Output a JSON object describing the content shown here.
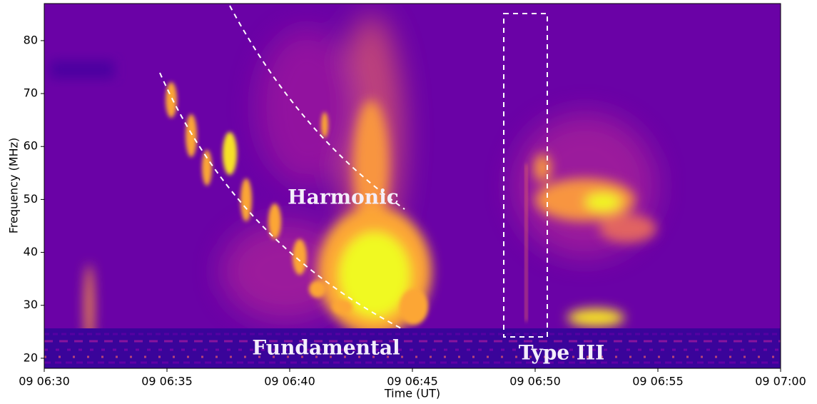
{
  "chart_data": {
    "type": "spectrogram",
    "xlabel": "Time (UT)",
    "ylabel": "Frequency (MHz)",
    "xlim": [
      390,
      420
    ],
    "xticks": [
      {
        "value": 390,
        "label": "09 06:30"
      },
      {
        "value": 395,
        "label": "09 06:35"
      },
      {
        "value": 400,
        "label": "09 06:40"
      },
      {
        "value": 405,
        "label": "09 06:45"
      },
      {
        "value": 410,
        "label": "09 06:50"
      },
      {
        "value": 415,
        "label": "09 06:55"
      },
      {
        "value": 420,
        "label": "09 07:00"
      }
    ],
    "ylim": [
      18.1,
      87
    ],
    "yticks": [
      20,
      30,
      40,
      50,
      60,
      70,
      80
    ],
    "colormap": "plasma",
    "annotations": [
      "Harmonic",
      "Fundamental",
      "Type III"
    ]
  }
}
